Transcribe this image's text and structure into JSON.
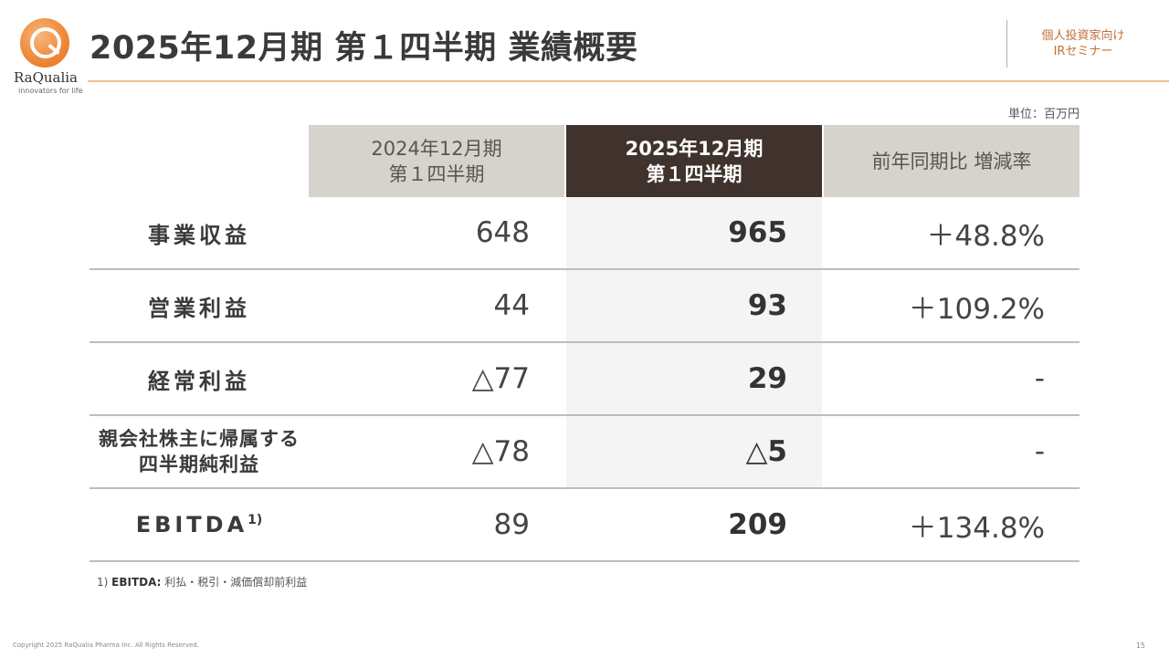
{
  "logo": {
    "name": "RaQualia",
    "tagline": "innovators for life"
  },
  "title": "2025年12月期 第１四半期 業績概要",
  "ir_label": [
    "個人投資家向け",
    "IRセミナー"
  ],
  "unit": "単位：百万円",
  "columns": {
    "prev": [
      "2024年12月期",
      "第１四半期"
    ],
    "cur": [
      "2025年12月期",
      "第１四半期"
    ],
    "change": "前年同期比 増減率"
  },
  "rows": [
    {
      "label": "事業収益",
      "prev": "648",
      "cur": "965",
      "change": "＋48.8%"
    },
    {
      "label": "営業利益",
      "prev": "44",
      "cur": "93",
      "change": "＋109.2%"
    },
    {
      "label": "経常利益",
      "prev": "△77",
      "cur": "29",
      "change": "-"
    },
    {
      "label_lines": [
        "親会社株主に帰属する",
        "四半期純利益"
      ],
      "prev": "△78",
      "cur": "△5",
      "change": "-"
    },
    {
      "label": "EBITDA",
      "label_sup": "1)",
      "prev": "89",
      "cur": "209",
      "change": "＋134.8%"
    }
  ],
  "footnote": {
    "marker": "1)",
    "term": "EBITDA:",
    "text": "利払・税引・減価償却前利益"
  },
  "copyright": "Copyright 2025 RaQualia Pharma Inc. All Rights Reserved.",
  "page_number": "15",
  "colors": {
    "accent": "#ef8a3a",
    "header_dark": "#40322d",
    "header_light": "#d6d3cc"
  }
}
